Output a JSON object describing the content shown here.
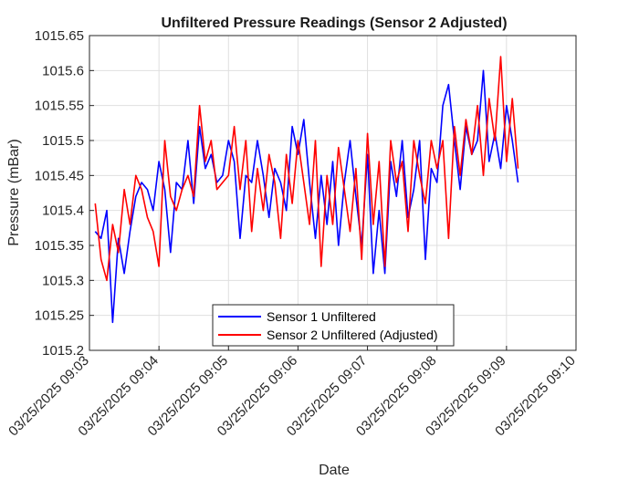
{
  "chart_data": {
    "type": "line",
    "title": "Unfiltered Pressure Readings (Sensor 2 Adjusted)",
    "xlabel": "Date",
    "ylabel": "Pressure (mBar)",
    "ylim": [
      1015.2,
      1015.65
    ],
    "yticks": [
      1015.2,
      1015.25,
      1015.3,
      1015.35,
      1015.4,
      1015.45,
      1015.5,
      1015.55,
      1015.6,
      1015.65
    ],
    "ytick_labels": [
      "1015.2",
      "1015.25",
      "1015.3",
      "1015.35",
      "1015.4",
      "1015.45",
      "1015.5",
      "1015.55",
      "1015.6",
      "1015.65"
    ],
    "xlim": [
      "03/25/2025 09:03",
      "03/25/2025 09:10"
    ],
    "xtick_labels": [
      "03/25/2025 09:03",
      "03/25/2025 09:04",
      "03/25/2025 09:05",
      "03/25/2025 09:06",
      "03/25/2025 09:07",
      "03/25/2025 09:08",
      "03/25/2025 09:09",
      "03/25/2025 09:10"
    ],
    "grid": true,
    "legend_position": "bottom-center",
    "series": [
      {
        "name": "Sensor 1 Unfiltered",
        "color": "#0000ff",
        "x": [
          "09:03:05",
          "09:03:10",
          "09:03:15",
          "09:03:20",
          "09:03:25",
          "09:03:30",
          "09:03:35",
          "09:03:40",
          "09:03:45",
          "09:03:50",
          "09:03:55",
          "09:04:00",
          "09:04:05",
          "09:04:10",
          "09:04:15",
          "09:04:20",
          "09:04:25",
          "09:04:30",
          "09:04:35",
          "09:04:40",
          "09:04:45",
          "09:04:50",
          "09:04:55",
          "09:05:00",
          "09:05:05",
          "09:05:10",
          "09:05:15",
          "09:05:20",
          "09:05:25",
          "09:05:30",
          "09:05:35",
          "09:05:40",
          "09:05:45",
          "09:05:50",
          "09:05:55",
          "09:06:00",
          "09:06:05",
          "09:06:10",
          "09:06:15",
          "09:06:20",
          "09:06:25",
          "09:06:30",
          "09:06:35",
          "09:06:40",
          "09:06:45",
          "09:06:50",
          "09:06:55",
          "09:07:00",
          "09:07:05",
          "09:07:10",
          "09:07:15",
          "09:07:20",
          "09:07:25",
          "09:07:30",
          "09:07:35",
          "09:07:40",
          "09:07:45",
          "09:07:50",
          "09:07:55",
          "09:08:00",
          "09:08:05",
          "09:08:10",
          "09:08:15",
          "09:08:20",
          "09:08:25",
          "09:08:30",
          "09:08:35",
          "09:08:40",
          "09:08:45",
          "09:08:50",
          "09:08:55",
          "09:09:00",
          "09:09:05",
          "09:09:10"
        ],
        "values": [
          1015.37,
          1015.36,
          1015.4,
          1015.24,
          1015.36,
          1015.31,
          1015.37,
          1015.42,
          1015.44,
          1015.43,
          1015.4,
          1015.47,
          1015.43,
          1015.34,
          1015.44,
          1015.43,
          1015.5,
          1015.41,
          1015.52,
          1015.46,
          1015.48,
          1015.44,
          1015.45,
          1015.5,
          1015.47,
          1015.36,
          1015.45,
          1015.44,
          1015.5,
          1015.45,
          1015.39,
          1015.46,
          1015.44,
          1015.4,
          1015.52,
          1015.48,
          1015.53,
          1015.44,
          1015.36,
          1015.45,
          1015.38,
          1015.47,
          1015.35,
          1015.44,
          1015.5,
          1015.42,
          1015.35,
          1015.48,
          1015.31,
          1015.4,
          1015.31,
          1015.47,
          1015.42,
          1015.5,
          1015.39,
          1015.43,
          1015.5,
          1015.33,
          1015.46,
          1015.44,
          1015.55,
          1015.58,
          1015.5,
          1015.43,
          1015.52,
          1015.48,
          1015.5,
          1015.6,
          1015.47,
          1015.51,
          1015.46,
          1015.55,
          1015.5,
          1015.44
        ]
      },
      {
        "name": "Sensor 2 Unfiltered (Adjusted)",
        "color": "#ff0000",
        "x": [
          "09:03:05",
          "09:03:10",
          "09:03:15",
          "09:03:20",
          "09:03:25",
          "09:03:30",
          "09:03:35",
          "09:03:40",
          "09:03:45",
          "09:03:50",
          "09:03:55",
          "09:04:00",
          "09:04:05",
          "09:04:10",
          "09:04:15",
          "09:04:20",
          "09:04:25",
          "09:04:30",
          "09:04:35",
          "09:04:40",
          "09:04:45",
          "09:04:50",
          "09:04:55",
          "09:05:00",
          "09:05:05",
          "09:05:10",
          "09:05:15",
          "09:05:20",
          "09:05:25",
          "09:05:30",
          "09:05:35",
          "09:05:40",
          "09:05:45",
          "09:05:50",
          "09:05:55",
          "09:06:00",
          "09:06:05",
          "09:06:10",
          "09:06:15",
          "09:06:20",
          "09:06:25",
          "09:06:30",
          "09:06:35",
          "09:06:40",
          "09:06:45",
          "09:06:50",
          "09:06:55",
          "09:07:00",
          "09:07:05",
          "09:07:10",
          "09:07:15",
          "09:07:20",
          "09:07:25",
          "09:07:30",
          "09:07:35",
          "09:07:40",
          "09:07:45",
          "09:07:50",
          "09:07:55",
          "09:08:00",
          "09:08:05",
          "09:08:10",
          "09:08:15",
          "09:08:20",
          "09:08:25",
          "09:08:30",
          "09:08:35",
          "09:08:40",
          "09:08:45",
          "09:08:50",
          "09:08:55",
          "09:09:00",
          "09:09:05",
          "09:09:10"
        ],
        "values": [
          1015.41,
          1015.33,
          1015.3,
          1015.38,
          1015.34,
          1015.43,
          1015.38,
          1015.45,
          1015.43,
          1015.39,
          1015.37,
          1015.32,
          1015.5,
          1015.42,
          1015.4,
          1015.43,
          1015.45,
          1015.42,
          1015.55,
          1015.47,
          1015.5,
          1015.43,
          1015.44,
          1015.45,
          1015.52,
          1015.43,
          1015.5,
          1015.37,
          1015.46,
          1015.4,
          1015.48,
          1015.44,
          1015.36,
          1015.48,
          1015.41,
          1015.5,
          1015.44,
          1015.38,
          1015.5,
          1015.32,
          1015.45,
          1015.38,
          1015.49,
          1015.43,
          1015.37,
          1015.46,
          1015.33,
          1015.51,
          1015.38,
          1015.47,
          1015.32,
          1015.5,
          1015.44,
          1015.47,
          1015.37,
          1015.5,
          1015.45,
          1015.41,
          1015.5,
          1015.46,
          1015.5,
          1015.36,
          1015.52,
          1015.45,
          1015.53,
          1015.48,
          1015.55,
          1015.45,
          1015.56,
          1015.5,
          1015.62,
          1015.47,
          1015.56,
          1015.46
        ]
      }
    ]
  }
}
